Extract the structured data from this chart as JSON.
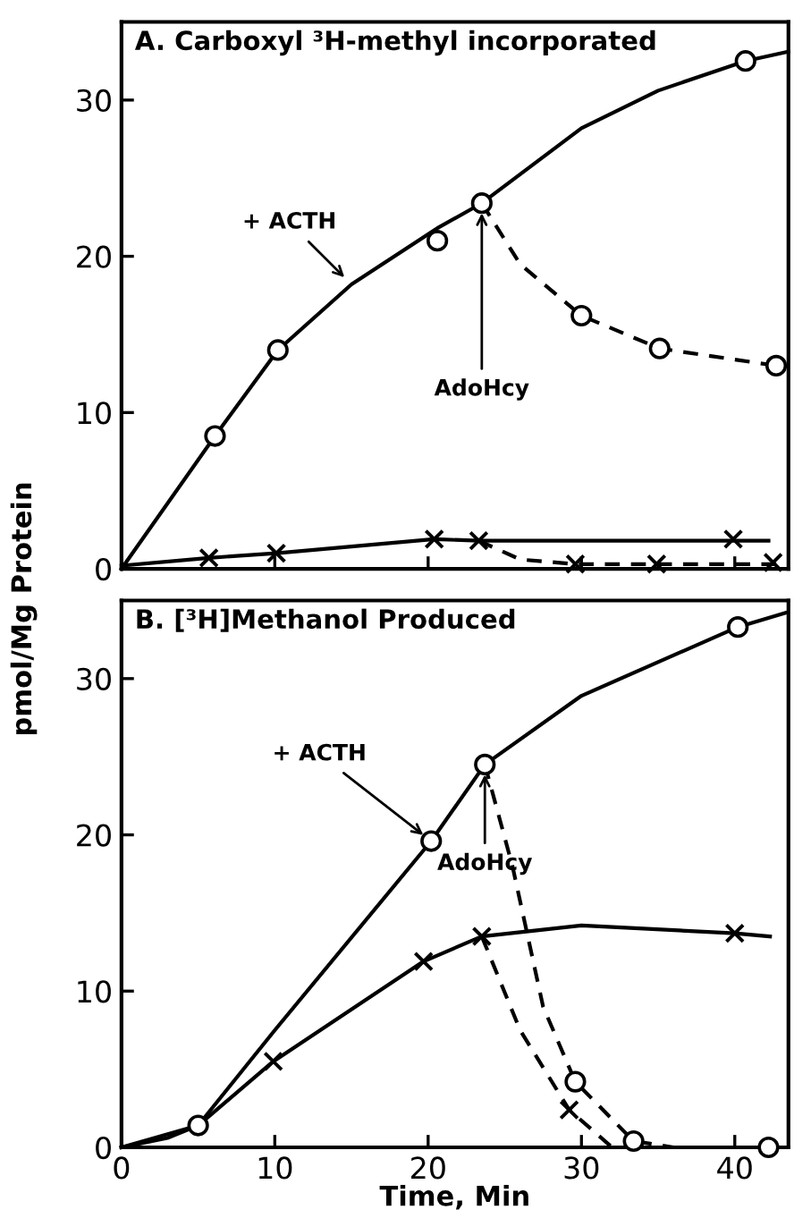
{
  "chart_data": [
    {
      "type": "line",
      "title": "A. Carboxyl ³H-methyl incorporated",
      "ylabel": "pmol/Mg Protein",
      "xlim": [
        0,
        43.5
      ],
      "ylim": [
        0,
        35
      ],
      "xticks": [
        {
          "value": 0,
          "label": null
        },
        {
          "value": 10,
          "label": null
        },
        {
          "value": 20,
          "label": null
        },
        {
          "value": 30,
          "label": null
        },
        {
          "value": 40,
          "label": null
        }
      ],
      "yticks": [
        0,
        10,
        20,
        30
      ],
      "tick_labels": "y",
      "grid": false,
      "legend": false,
      "annotations": [
        {
          "text": "+ ACTH",
          "x": 15,
          "y": 18.2
        },
        {
          "text": "AdoHcy",
          "x": 23.5,
          "y": 23.4
        }
      ],
      "series": [
        {
          "color": "#000000",
          "marker": "none",
          "line_style": "solid",
          "x": [
            0,
            6.1,
            10.2,
            15,
            20.6,
            23.5,
            30,
            35,
            40.7,
            43.5
          ],
          "values": [
            0,
            8.5,
            14,
            18.2,
            21.8,
            23.4,
            28.2,
            30.6,
            32.5,
            33.1
          ]
        },
        {
          "type": "scatter",
          "color": "#000000",
          "marker": "circle",
          "x": [
            6.1,
            10.2,
            20.6,
            23.5,
            40.7
          ],
          "values": [
            8.5,
            14,
            21,
            23.4,
            32.5
          ]
        },
        {
          "color": "#000000",
          "marker": "none",
          "line_style": "dashed",
          "x": [
            23.5,
            26,
            30,
            35.1,
            42.7
          ],
          "values": [
            23.4,
            19.5,
            16.2,
            14.1,
            13
          ]
        },
        {
          "type": "scatter",
          "color": "#000000",
          "marker": "circle",
          "x": [
            30,
            35.1,
            42.7
          ],
          "values": [
            16.2,
            14.1,
            13
          ]
        },
        {
          "color": "#000000",
          "marker": "none",
          "line_style": "solid",
          "x": [
            0,
            5.7,
            10.1,
            20.4,
            23.3,
            42.2
          ],
          "values": [
            0.2,
            0.7,
            1,
            1.9,
            1.8,
            1.8
          ]
        },
        {
          "type": "scatter",
          "color": "#000000",
          "marker": "cross",
          "x": [
            5.7,
            10.1,
            20.4,
            23.3,
            39.9
          ],
          "values": [
            0.7,
            1,
            1.9,
            1.8,
            1.9
          ]
        },
        {
          "color": "#000000",
          "marker": "none",
          "line_style": "dashed",
          "x": [
            23.3,
            26,
            29.6,
            43.5
          ],
          "values": [
            1.8,
            0.6,
            0.3,
            0.3
          ]
        },
        {
          "type": "scatter",
          "color": "#000000",
          "marker": "cross",
          "x": [
            29.6,
            34.9,
            42.5
          ],
          "values": [
            0.3,
            0.3,
            0.4
          ]
        }
      ]
    },
    {
      "type": "line",
      "title": "B. [³H]Methanol Produced",
      "xlabel": "Time, Min",
      "xlim": [
        0,
        43.5
      ],
      "ylim": [
        0,
        35
      ],
      "xticks": [
        0,
        10,
        20,
        30,
        40
      ],
      "yticks": [
        0,
        10,
        20,
        30
      ],
      "grid": false,
      "legend": false,
      "annotations": [
        {
          "text": "+ ACTH",
          "x": 20.2,
          "y": 19.6
        },
        {
          "text": "AdoHcy",
          "x": 23.7,
          "y": 24.5
        }
      ],
      "series": [
        {
          "color": "#000000",
          "marker": "none",
          "line_style": "solid",
          "x": [
            0,
            3,
            5,
            10,
            20.2,
            23.7,
            30,
            40.2,
            43.3
          ],
          "values": [
            0,
            0.6,
            1.4,
            7.5,
            19.6,
            24.5,
            28.9,
            33.3,
            34.2
          ]
        },
        {
          "type": "scatter",
          "color": "#000000",
          "marker": "circle",
          "x": [
            5,
            20.2,
            23.7,
            40.2
          ],
          "values": [
            1.4,
            19.6,
            24.5,
            33.3
          ]
        },
        {
          "color": "#000000",
          "marker": "none",
          "line_style": "dashed",
          "x": [
            23.7,
            25.5,
            27.5,
            29.6,
            33.4,
            36,
            42.2
          ],
          "values": [
            24.5,
            18,
            9,
            4.2,
            0.4,
            0,
            0
          ]
        },
        {
          "type": "scatter",
          "color": "#000000",
          "marker": "circle",
          "x": [
            29.6,
            33.4,
            42.2
          ],
          "values": [
            4.2,
            0.4,
            0
          ]
        },
        {
          "color": "#000000",
          "marker": "none",
          "line_style": "solid",
          "x": [
            0,
            5,
            9.9,
            19.7,
            23.5,
            30,
            40,
            42.3
          ],
          "values": [
            0,
            1.4,
            5.5,
            11.9,
            13.5,
            14.2,
            13.7,
            13.5
          ]
        },
        {
          "type": "scatter",
          "color": "#000000",
          "marker": "cross",
          "x": [
            9.9,
            19.7,
            23.5,
            40
          ],
          "values": [
            5.5,
            11.9,
            13.5,
            13.7
          ]
        },
        {
          "color": "#000000",
          "marker": "none",
          "line_style": "dashed",
          "x": [
            23.5,
            26,
            29.2,
            32
          ],
          "values": [
            13.5,
            7.5,
            2.4,
            0
          ]
        },
        {
          "type": "scatter",
          "color": "#000000",
          "marker": "cross",
          "x": [
            29.2
          ],
          "values": [
            2.4
          ]
        }
      ]
    }
  ]
}
